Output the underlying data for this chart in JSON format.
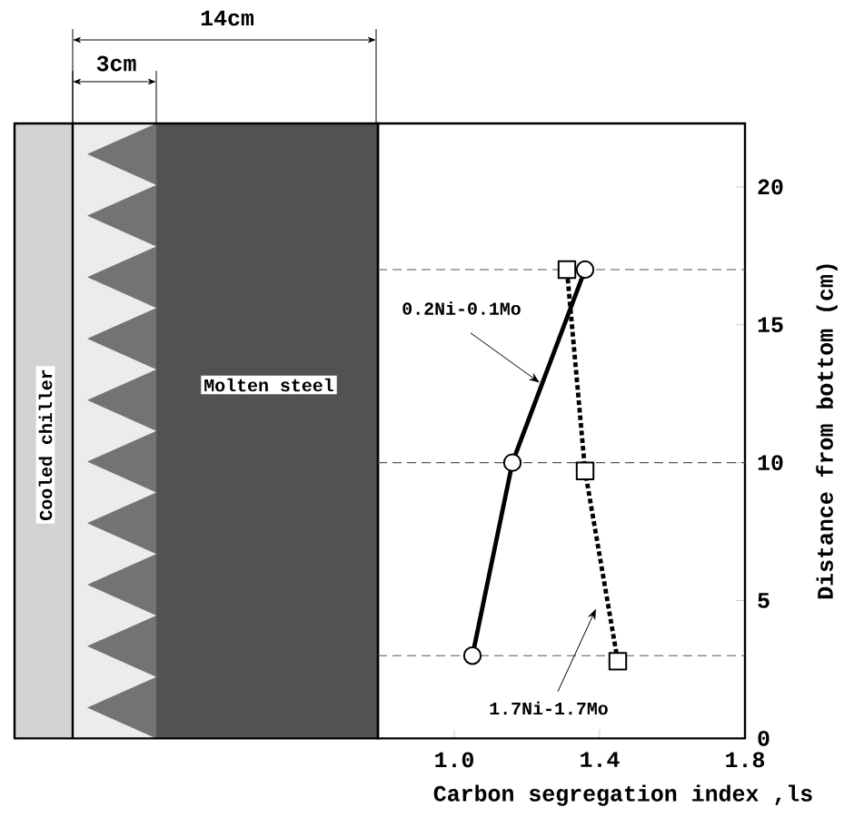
{
  "chart_data": {
    "type": "line",
    "xlabel": "Carbon segregation index ,ls",
    "ylabel": "Distance from bottom (cm)",
    "xlim": [
      0.79,
      1.8
    ],
    "xticks": [
      {
        "value": 1,
        "label": "1.0"
      },
      1.4,
      1.8
    ],
    "ylim": [
      0,
      22.3
    ],
    "yticks": [
      0,
      5,
      10,
      15,
      20
    ],
    "series": [
      {
        "name": "0.2Ni-0.1Mo",
        "color": "#000000",
        "x": [
          1.05,
          1.16,
          1.36
        ],
        "values": [
          3,
          10,
          17
        ],
        "marker": "circle",
        "line_style": "solid"
      },
      {
        "name": "1.7Ni-1.7Mo",
        "color": "#000000",
        "x": [
          1.45,
          1.36,
          1.31
        ],
        "values": [
          2.8,
          9.7,
          17
        ],
        "marker": "square",
        "line_style": "dotted"
      }
    ],
    "ref_lines": [
      {
        "axis": "y",
        "value": 3,
        "line_style": "dashed",
        "color": "#555555"
      },
      {
        "axis": "y",
        "value": 10,
        "line_style": "dashed",
        "color": "#555555"
      },
      {
        "axis": "y",
        "value": 17,
        "line_style": "dashed",
        "color": "#555555"
      }
    ],
    "annotations": [
      "14cm",
      "3cm",
      "Cooled chiller",
      "Molten steel"
    ],
    "grid": false
  }
}
